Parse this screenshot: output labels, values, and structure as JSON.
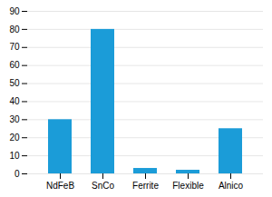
{
  "chart_data": {
    "type": "bar",
    "categories": [
      "NdFeB",
      "SnCo",
      "Ferrite",
      "Flexible",
      "Alnico"
    ],
    "values": [
      30,
      80,
      3,
      2,
      25
    ],
    "color": "#1b9cd8",
    "ylim": [
      0,
      90
    ],
    "yticks": [
      0,
      10,
      20,
      30,
      40,
      50,
      60,
      70,
      80,
      90
    ],
    "grid": true
  }
}
